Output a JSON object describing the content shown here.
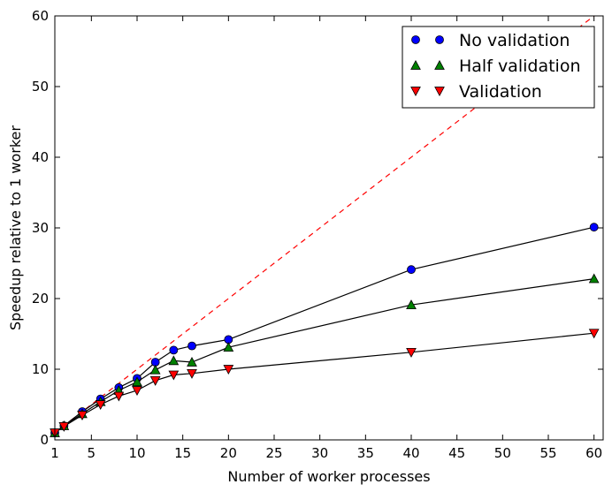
{
  "chart_data": {
    "type": "line",
    "title": "",
    "xlabel": "Number of worker processes",
    "ylabel": "Speedup relative to 1 worker",
    "xlim": [
      1,
      61
    ],
    "ylim": [
      0,
      60
    ],
    "xticks": [
      1,
      5,
      10,
      15,
      20,
      25,
      30,
      35,
      40,
      45,
      50,
      55,
      60
    ],
    "yticks": [
      0,
      10,
      20,
      30,
      40,
      50,
      60
    ],
    "grid": false,
    "legend_position": "top-right",
    "ideal_line": {
      "description": "ideal linear speedup",
      "color": "#ff0000",
      "style": "dashed",
      "points": [
        [
          1,
          1
        ],
        [
          61,
          61
        ]
      ]
    },
    "series": [
      {
        "name": "No validation",
        "marker": "circle",
        "color": "#0000ff",
        "x": [
          1,
          2,
          4,
          6,
          8,
          10,
          12,
          14,
          16,
          20,
          40,
          60
        ],
        "y": [
          1.0,
          2.0,
          4.0,
          5.8,
          7.4,
          8.7,
          11.0,
          12.7,
          13.3,
          14.2,
          24.1,
          30.1
        ]
      },
      {
        "name": "Half validation",
        "marker": "triangle-up",
        "color": "#008000",
        "x": [
          1,
          2,
          4,
          6,
          8,
          10,
          12,
          14,
          16,
          20,
          40,
          60
        ],
        "y": [
          1.0,
          2.0,
          3.7,
          5.4,
          7.0,
          8.2,
          9.9,
          11.2,
          11.0,
          13.1,
          19.1,
          22.8
        ]
      },
      {
        "name": "Validation",
        "marker": "triangle-down",
        "color": "#ff0000",
        "x": [
          1,
          2,
          4,
          6,
          8,
          10,
          12,
          14,
          16,
          20,
          40,
          60
        ],
        "y": [
          1.0,
          1.9,
          3.5,
          5.0,
          6.2,
          7.0,
          8.4,
          9.2,
          9.4,
          10.0,
          12.4,
          15.1
        ]
      }
    ]
  }
}
